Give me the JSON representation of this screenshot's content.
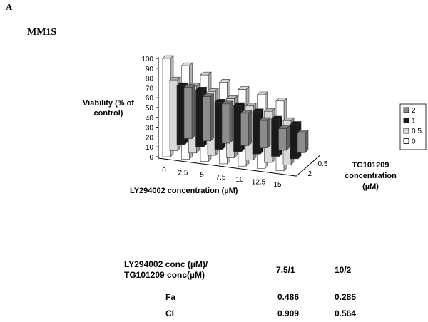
{
  "panel_label": "A",
  "cell_line": "MM1S",
  "chart_data": {
    "type": "bar",
    "subtype": "3d-clustered",
    "ylabel": "Viability (% of control)",
    "xlabel": "LY294002 concentration (µM)",
    "zlabel": "TG101209 concentration (µM)",
    "categories": [
      "0",
      "2.5",
      "5",
      "7.5",
      "10",
      "12.5",
      "15"
    ],
    "yticks": [
      "0",
      "10",
      "20",
      "30",
      "40",
      "50",
      "60",
      "70",
      "80",
      "90",
      "100"
    ],
    "ylim": [
      0,
      100
    ],
    "zticks": [
      "0.5",
      "2"
    ],
    "legend_position": "right",
    "series": [
      {
        "name": "2",
        "color": "#8c8c8c",
        "values": [
          52,
          45,
          40,
          33,
          28,
          22,
          20
        ]
      },
      {
        "name": "1",
        "color": "#1a1a1a",
        "values": [
          60,
          58,
          48,
          47,
          43,
          38,
          35
        ]
      },
      {
        "name": "0.5",
        "color": "#d9d9d9",
        "values": [
          72,
          68,
          65,
          60,
          55,
          52,
          45
        ]
      },
      {
        "name": "0",
        "color": "#ffffff",
        "values": [
          100,
          95,
          88,
          83,
          78,
          75,
          71
        ]
      }
    ]
  },
  "table": {
    "header": [
      "LY294002 conc (µM)/",
      "TG101209 conc(µM)"
    ],
    "columns": [
      "7.5/1",
      "10/2"
    ],
    "rows": [
      {
        "label": "Fa",
        "values": [
          "0.486",
          "0.285"
        ]
      },
      {
        "label": "CI",
        "values": [
          "0.909",
          "0.564"
        ]
      }
    ]
  }
}
